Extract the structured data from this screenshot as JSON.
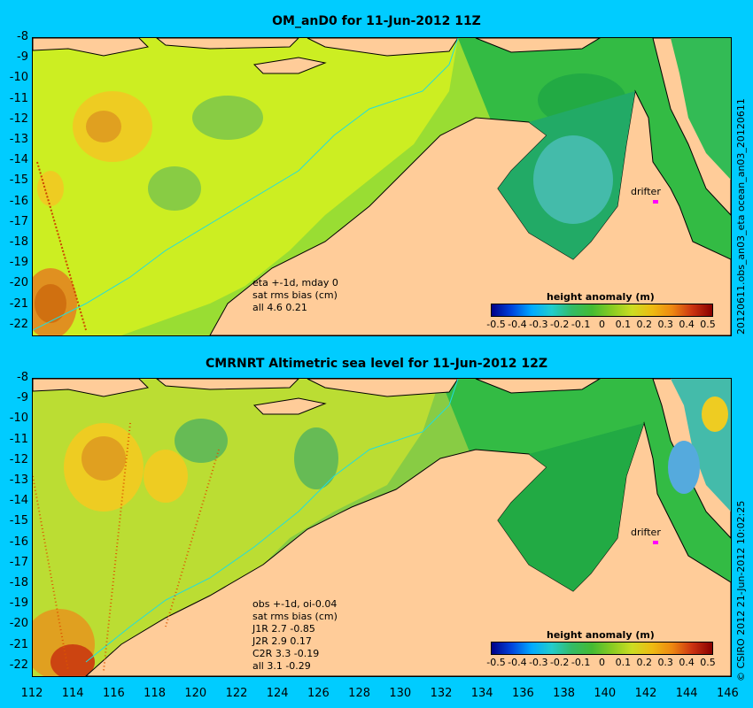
{
  "panel1": {
    "title": "OM_anD0 for 11-Jun-2012 11Z",
    "side_label": "20120611.obs_an03_eta          ocean_an03_20120611",
    "notes": [
      "eta +-1d, mday 0",
      "sat rms bias (cm)",
      "all 4.6 0.21"
    ],
    "colorbar_title": "height anomaly (m)",
    "drifter_label": "drifter"
  },
  "panel2": {
    "title": "CMRNRT Altimetric sea level  for 11-Jun-2012 12Z",
    "side_label": "© CSIRO 2012  21-Jun-2012 10:02:25",
    "notes": [
      "obs +-1d, oi-0.04",
      "sat rms bias (cm)",
      "J1R   2.7 -0.85",
      "J2R   2.9 0.17",
      "C2R   3.3 -0.19",
      "all 3.1 -0.29"
    ],
    "colorbar_title": "height anomaly (m)",
    "drifter_label": "drifter"
  },
  "y_ticks": [
    "-8",
    "-9",
    "-10",
    "-11",
    "-12",
    "-13",
    "-14",
    "-15",
    "-16",
    "-17",
    "-18",
    "-19",
    "-20",
    "-21",
    "-22"
  ],
  "x_ticks": [
    "112",
    "114",
    "116",
    "118",
    "120",
    "122",
    "124",
    "126",
    "128",
    "130",
    "132",
    "134",
    "136",
    "138",
    "140",
    "142",
    "144",
    "146"
  ],
  "colorbar_ticks": [
    "-0.5",
    "-0.4",
    "-0.3",
    "-0.2",
    "-0.1",
    "0",
    "0.1",
    "0.2",
    "0.3",
    "0.4",
    "0.5"
  ],
  "colors": {
    "background": "#00ccff",
    "land": "#ffcc99",
    "drifter": "#ff00ff"
  }
}
